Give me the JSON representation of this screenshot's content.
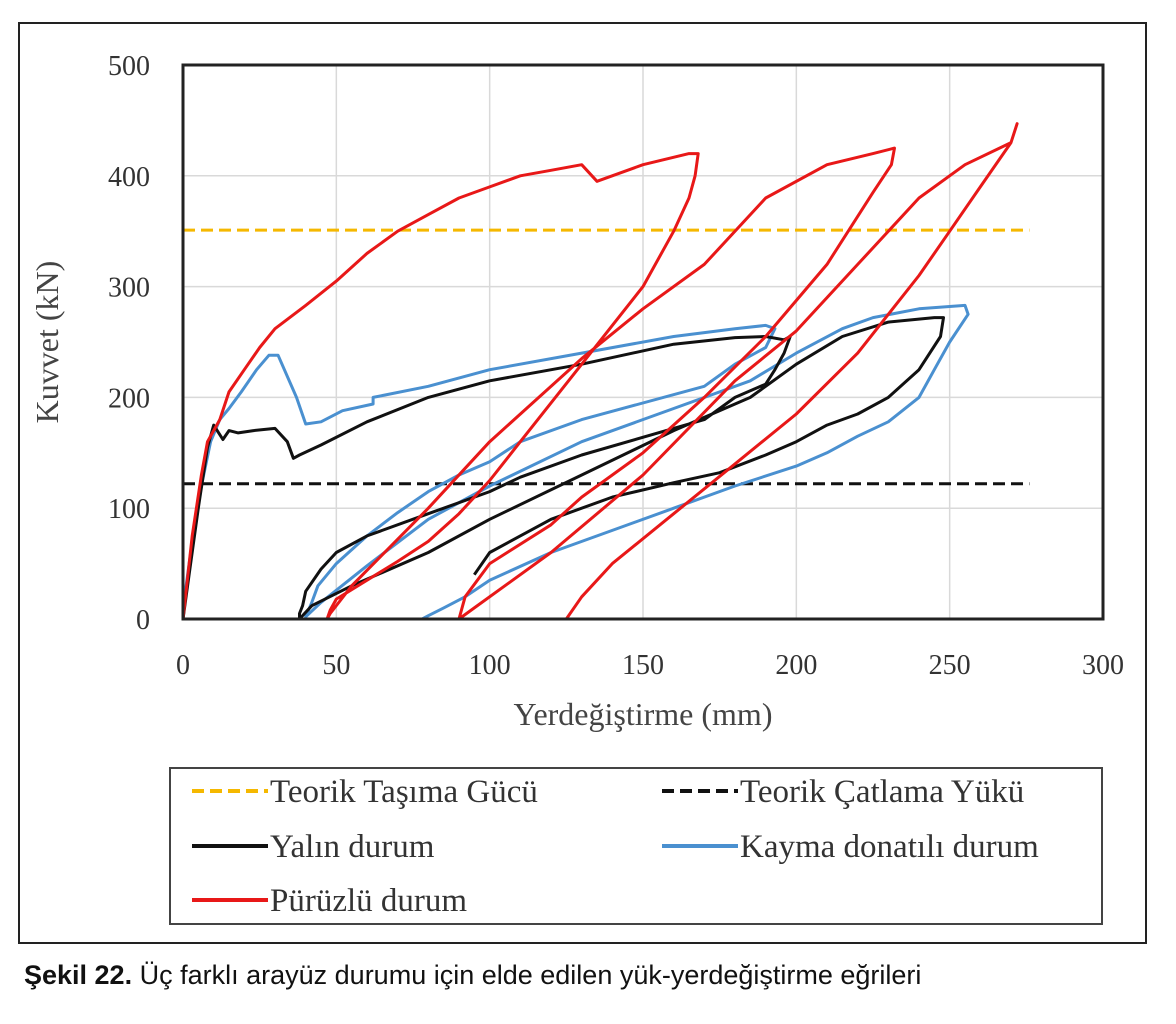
{
  "caption": {
    "label": "Şekil 22.",
    "text": "Üç farklı arayüz durumu için elde edilen yük-yerdeğiştirme eğrileri"
  },
  "chart_data": {
    "type": "line",
    "title": "",
    "xlabel": "Yerdeğiştirme (mm)",
    "ylabel": "Kuvvet (kN)",
    "xlim": [
      0,
      300
    ],
    "ylim": [
      0,
      500
    ],
    "x_ticks": [
      "0",
      "50",
      "100",
      "150",
      "200",
      "250",
      "300"
    ],
    "y_ticks": [
      "0",
      "100",
      "200",
      "300",
      "400",
      "500"
    ],
    "grid": true,
    "legend_position": "bottom",
    "series": [
      {
        "name": "Teorik Taşıma Gücü",
        "color": "#F5B800",
        "style": "dashed",
        "x": [
          0,
          276
        ],
        "y": [
          351,
          351
        ]
      },
      {
        "name": "Teorik Çatlama Yükü",
        "color": "#111111",
        "style": "dashed",
        "x": [
          0,
          276
        ],
        "y": [
          122,
          122
        ]
      },
      {
        "name": "Kayma donatılı durum",
        "color": "#4A90D0",
        "style": "solid",
        "x": [
          0,
          1,
          3,
          6,
          9,
          12,
          15,
          19,
          24,
          28,
          31,
          37,
          40,
          45,
          52,
          62,
          62,
          80,
          100,
          130,
          160,
          180,
          190,
          193,
          190,
          180,
          170,
          130,
          110,
          100,
          90,
          80,
          70,
          60,
          50,
          44,
          42,
          40,
          45,
          60,
          80,
          100,
          130,
          160,
          185,
          200,
          215,
          225,
          240,
          255,
          256,
          250,
          245,
          240,
          230,
          220,
          210,
          200,
          180,
          160,
          140,
          120,
          100,
          92,
          85,
          80,
          78
        ],
        "y": [
          0,
          30,
          70,
          120,
          160,
          180,
          190,
          205,
          225,
          238,
          238,
          200,
          176,
          178,
          188,
          194,
          200,
          210,
          225,
          240,
          255,
          262,
          265,
          262,
          245,
          230,
          210,
          180,
          160,
          142,
          130,
          115,
          96,
          75,
          50,
          30,
          15,
          2,
          15,
          48,
          90,
          120,
          160,
          190,
          215,
          240,
          262,
          272,
          280,
          283,
          275,
          250,
          225,
          200,
          178,
          165,
          150,
          138,
          120,
          100,
          80,
          60,
          35,
          20,
          10,
          3,
          0
        ]
      },
      {
        "name": "Yalın durum",
        "color": "#111111",
        "style": "solid",
        "x": [
          0,
          2,
          5,
          8,
          10,
          13,
          15,
          18,
          23,
          30,
          34,
          36,
          38,
          45,
          60,
          80,
          100,
          130,
          160,
          180,
          190,
          196,
          198,
          196,
          193,
          190,
          180,
          170,
          130,
          110,
          100,
          80,
          60,
          50,
          45,
          40,
          39,
          38,
          38,
          42,
          55,
          80,
          100,
          130,
          160,
          185,
          200,
          215,
          230,
          245,
          248,
          247,
          240,
          230,
          220,
          210,
          200,
          190,
          175,
          160,
          140,
          120,
          100,
          95
        ],
        "y": [
          0,
          40,
          100,
          155,
          175,
          162,
          170,
          168,
          170,
          172,
          160,
          145,
          148,
          157,
          178,
          200,
          215,
          230,
          248,
          254,
          255,
          252,
          255,
          240,
          225,
          212,
          200,
          180,
          148,
          128,
          115,
          95,
          75,
          60,
          45,
          25,
          12,
          5,
          0,
          12,
          30,
          60,
          90,
          130,
          170,
          200,
          230,
          255,
          268,
          272,
          272,
          255,
          225,
          200,
          185,
          175,
          160,
          148,
          132,
          123,
          110,
          90,
          60,
          40
        ]
      },
      {
        "name": "Pürüzlü durum",
        "color": "#E81818",
        "style": "solid",
        "x": [
          0,
          1,
          3,
          6,
          8,
          12,
          15,
          20,
          25,
          30,
          40,
          50,
          60,
          70,
          80,
          90,
          100,
          110,
          120,
          130,
          135,
          150,
          165,
          168,
          167,
          165,
          160,
          150,
          130,
          110,
          100,
          90,
          80,
          70,
          60,
          50,
          48,
          47,
          48,
          55,
          80,
          100,
          130,
          150,
          170,
          190,
          210,
          225,
          232,
          231,
          225,
          210,
          190,
          170,
          150,
          130,
          120,
          100,
          92,
          90,
          95,
          120,
          150,
          180,
          200,
          220,
          240,
          255,
          270,
          272,
          270,
          260,
          250,
          240,
          220,
          200,
          180,
          160,
          140,
          130,
          125
        ],
        "y": [
          0,
          25,
          75,
          130,
          160,
          180,
          205,
          225,
          245,
          262,
          283,
          305,
          330,
          350,
          365,
          380,
          390,
          400,
          405,
          410,
          395,
          410,
          420,
          420,
          400,
          380,
          350,
          300,
          230,
          160,
          125,
          95,
          70,
          52,
          35,
          18,
          8,
          0,
          5,
          30,
          100,
          160,
          235,
          280,
          320,
          380,
          410,
          420,
          425,
          410,
          385,
          320,
          255,
          200,
          150,
          110,
          85,
          50,
          20,
          0,
          10,
          60,
          130,
          215,
          260,
          320,
          380,
          410,
          430,
          447,
          430,
          390,
          350,
          310,
          240,
          185,
          140,
          95,
          50,
          20,
          0
        ]
      }
    ],
    "legend": [
      {
        "label": "Teorik Taşıma Gücü",
        "color": "#F5B800",
        "style": "dashed"
      },
      {
        "label": "Teorik Çatlama Yükü",
        "color": "#111111",
        "style": "dashed"
      },
      {
        "label": "Yalın durum",
        "color": "#111111",
        "style": "solid"
      },
      {
        "label": "Kayma donatılı durum",
        "color": "#4A90D0",
        "style": "solid"
      },
      {
        "label": "Pürüzlü durum",
        "color": "#E81818",
        "style": "solid"
      }
    ]
  }
}
